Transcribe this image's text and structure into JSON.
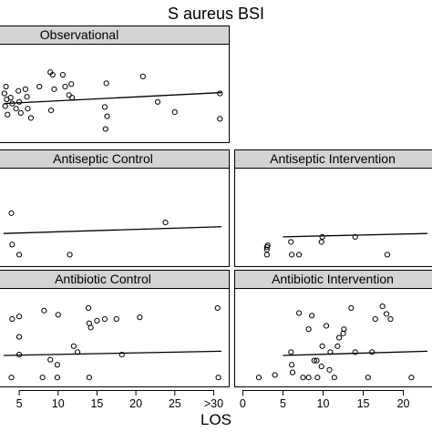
{
  "chart_data": {
    "type": "scatter",
    "title": "S aureus BSI",
    "xlabel": "LOS",
    "ylabel": "",
    "x_ticks_left": [
      "5",
      "10",
      "15",
      "20",
      "25",
      ">30"
    ],
    "x_ticks_right": [
      "0",
      "5",
      "10",
      "15",
      "20"
    ],
    "grid": false,
    "legend": "none",
    "panels": [
      {
        "name": "Observational",
        "xlim": [
          3,
          31
        ],
        "ylim": [
          0,
          1
        ],
        "points": [
          {
            "x": 3.1,
            "y": 0.5
          },
          {
            "x": 3.2,
            "y": 0.35
          },
          {
            "x": 3.3,
            "y": 0.58
          },
          {
            "x": 3.5,
            "y": 0.25
          },
          {
            "x": 3.4,
            "y": 0.43
          },
          {
            "x": 3.9,
            "y": 0.45
          },
          {
            "x": 4.1,
            "y": 0.38
          },
          {
            "x": 4.6,
            "y": 0.32
          },
          {
            "x": 4.9,
            "y": 0.53
          },
          {
            "x": 5.0,
            "y": 0.4
          },
          {
            "x": 5.2,
            "y": 0.27
          },
          {
            "x": 5.8,
            "y": 0.55
          },
          {
            "x": 6.0,
            "y": 0.46
          },
          {
            "x": 6.5,
            "y": 0.21
          },
          {
            "x": 6.1,
            "y": 0.32
          },
          {
            "x": 7.6,
            "y": 0.58
          },
          {
            "x": 9.0,
            "y": 0.75
          },
          {
            "x": 9.3,
            "y": 0.72
          },
          {
            "x": 9.5,
            "y": 0.55
          },
          {
            "x": 9.1,
            "y": 0.3
          },
          {
            "x": 10.6,
            "y": 0.72
          },
          {
            "x": 10.9,
            "y": 0.58
          },
          {
            "x": 11.4,
            "y": 0.48
          },
          {
            "x": 11.8,
            "y": 0.45
          },
          {
            "x": 11.7,
            "y": 0.61
          },
          {
            "x": 16.2,
            "y": 0.62
          },
          {
            "x": 16.0,
            "y": 0.34
          },
          {
            "x": 16.3,
            "y": 0.23
          },
          {
            "x": 16.1,
            "y": 0.08
          },
          {
            "x": 20.9,
            "y": 0.7
          },
          {
            "x": 22.8,
            "y": 0.4
          },
          {
            "x": 25.0,
            "y": 0.28
          },
          {
            "x": 30.8,
            "y": 0.5
          },
          {
            "x": 30.8,
            "y": 0.2
          }
        ],
        "fit": {
          "x": [
            3,
            31
          ],
          "y": [
            0.38,
            0.51
          ]
        }
      },
      {
        "name": "Antiseptic Control",
        "xlim": [
          3,
          31
        ],
        "ylim": [
          0,
          1
        ],
        "points": [
          {
            "x": 4.0,
            "y": 0.55
          },
          {
            "x": 4.1,
            "y": 0.18
          },
          {
            "x": 5.0,
            "y": 0.06
          },
          {
            "x": 11.5,
            "y": 0.06
          },
          {
            "x": 23.8,
            "y": 0.44
          }
        ],
        "fit": {
          "x": [
            3,
            31
          ],
          "y": [
            0.31,
            0.39
          ]
        }
      },
      {
        "name": "Antiseptic Intervention",
        "xlim": [
          -0.5,
          23
        ],
        "ylim": [
          0,
          1
        ],
        "points": [
          {
            "x": 3.0,
            "y": 0.15
          },
          {
            "x": 3.0,
            "y": 0.12
          },
          {
            "x": 3.1,
            "y": 0.17
          },
          {
            "x": 3.0,
            "y": 0.06
          },
          {
            "x": 6.0,
            "y": 0.21
          },
          {
            "x": 6.1,
            "y": 0.06
          },
          {
            "x": 7.0,
            "y": 0.06
          },
          {
            "x": 9.9,
            "y": 0.27
          },
          {
            "x": 9.8,
            "y": 0.21
          },
          {
            "x": 14.0,
            "y": 0.27
          },
          {
            "x": 18.0,
            "y": 0.06
          }
        ],
        "fit": {
          "x": [
            5,
            23
          ],
          "y": [
            0.27,
            0.31
          ]
        }
      },
      {
        "name": "Antibiotic Control",
        "xlim": [
          3,
          31
        ],
        "ylim": [
          0,
          1
        ],
        "points": [
          {
            "x": 4.0,
            "y": 0.03
          },
          {
            "x": 4.1,
            "y": 0.72
          },
          {
            "x": 5.0,
            "y": 0.75
          },
          {
            "x": 5.0,
            "y": 0.3
          },
          {
            "x": 5.0,
            "y": 0.51
          },
          {
            "x": 8.2,
            "y": 0.82
          },
          {
            "x": 8.0,
            "y": 0.03
          },
          {
            "x": 9.0,
            "y": 0.24
          },
          {
            "x": 9.9,
            "y": 0.18
          },
          {
            "x": 9.9,
            "y": 0.03
          },
          {
            "x": 10.0,
            "y": 0.77
          },
          {
            "x": 12.0,
            "y": 0.4
          },
          {
            "x": 12.5,
            "y": 0.33
          },
          {
            "x": 13.9,
            "y": 0.85
          },
          {
            "x": 14.0,
            "y": 0.67
          },
          {
            "x": 14.2,
            "y": 0.62
          },
          {
            "x": 14.0,
            "y": 0.03
          },
          {
            "x": 15.0,
            "y": 0.7
          },
          {
            "x": 16.0,
            "y": 0.72
          },
          {
            "x": 17.5,
            "y": 0.72
          },
          {
            "x": 18.2,
            "y": 0.3
          },
          {
            "x": 20.5,
            "y": 0.74
          },
          {
            "x": 30.5,
            "y": 0.85
          },
          {
            "x": 30.6,
            "y": 0.03
          }
        ],
        "fit": {
          "x": [
            3,
            31
          ],
          "y": [
            0.29,
            0.34
          ]
        }
      },
      {
        "name": "Antibiotic Intervention",
        "xlim": [
          -0.5,
          23
        ],
        "ylim": [
          0,
          1
        ],
        "points": [
          {
            "x": 2.0,
            "y": 0.03
          },
          {
            "x": 4.0,
            "y": 0.06
          },
          {
            "x": 6.0,
            "y": 0.33
          },
          {
            "x": 6.1,
            "y": 0.18
          },
          {
            "x": 6.2,
            "y": 0.09
          },
          {
            "x": 7.0,
            "y": 0.79
          },
          {
            "x": 7.5,
            "y": 0.03
          },
          {
            "x": 8.2,
            "y": 0.6
          },
          {
            "x": 8.2,
            "y": 0.03
          },
          {
            "x": 8.6,
            "y": 0.76
          },
          {
            "x": 8.9,
            "y": 0.23
          },
          {
            "x": 9.2,
            "y": 0.23
          },
          {
            "x": 9.3,
            "y": 0.03
          },
          {
            "x": 9.8,
            "y": 0.16
          },
          {
            "x": 9.9,
            "y": 0.4
          },
          {
            "x": 10.4,
            "y": 0.64
          },
          {
            "x": 10.8,
            "y": 0.12
          },
          {
            "x": 10.9,
            "y": 0.33
          },
          {
            "x": 11.4,
            "y": 0.03
          },
          {
            "x": 11.8,
            "y": 0.4
          },
          {
            "x": 12.0,
            "y": 0.5
          },
          {
            "x": 12.5,
            "y": 0.55
          },
          {
            "x": 12.6,
            "y": 0.6
          },
          {
            "x": 13.5,
            "y": 0.85
          },
          {
            "x": 14.0,
            "y": 0.33
          },
          {
            "x": 15.6,
            "y": 0.03
          },
          {
            "x": 16.1,
            "y": 0.33
          },
          {
            "x": 16.5,
            "y": 0.72
          },
          {
            "x": 17.4,
            "y": 0.87
          },
          {
            "x": 17.9,
            "y": 0.78
          },
          {
            "x": 18.4,
            "y": 0.72
          },
          {
            "x": 21.0,
            "y": 0.03
          }
        ],
        "fit": {
          "x": [
            5,
            23
          ],
          "y": [
            0.29,
            0.34
          ]
        }
      }
    ]
  },
  "colors": {
    "strip_fill": "#d3d3d3",
    "ink": "#000000",
    "background": "#ffffff"
  }
}
